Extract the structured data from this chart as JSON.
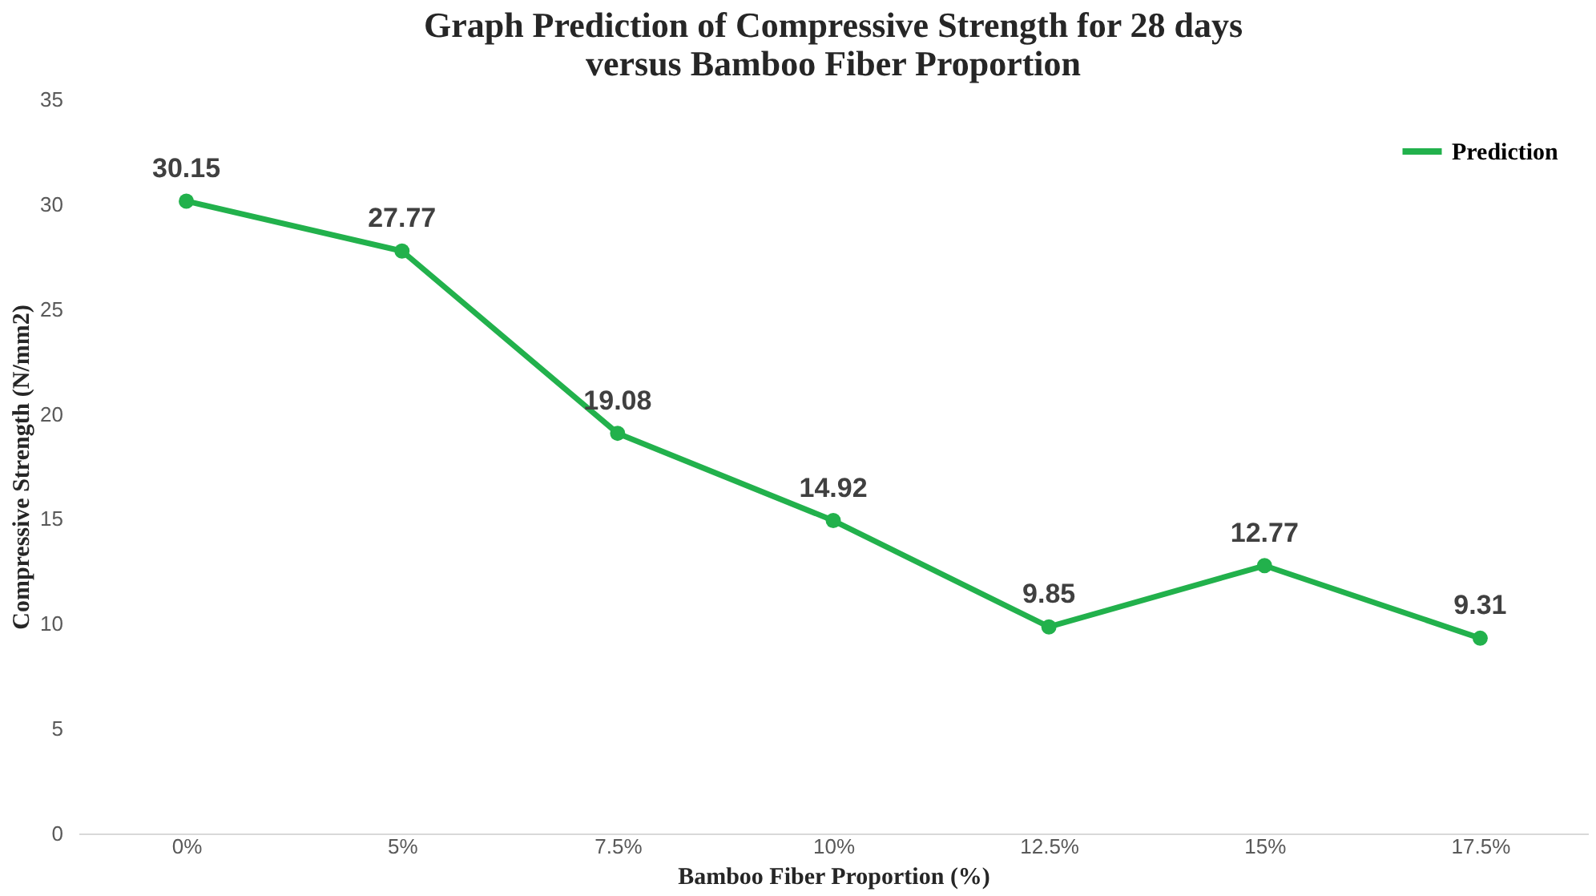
{
  "chart_data": {
    "type": "line",
    "title": "Graph Prediction of Compressive Strength for 28 days\nversus Bamboo Fiber Proportion",
    "xlabel": "Bamboo Fiber Proportion (%)",
    "ylabel": "Compressive Strength (N/mm2)",
    "categories": [
      "0%",
      "5%",
      "7.5%",
      "10%",
      "12.5%",
      "15%",
      "17.5%"
    ],
    "series": [
      {
        "name": "Prediction",
        "color": "#22b14c",
        "values": [
          30.15,
          27.77,
          19.08,
          14.92,
          9.85,
          12.77,
          9.31
        ]
      }
    ],
    "ylim": [
      0,
      35
    ],
    "yticks": [
      0,
      5,
      10,
      15,
      20,
      25,
      30,
      35
    ],
    "grid": false,
    "legend": "top right",
    "marker": "circle",
    "line_style": "solid",
    "data_labels": true
  }
}
